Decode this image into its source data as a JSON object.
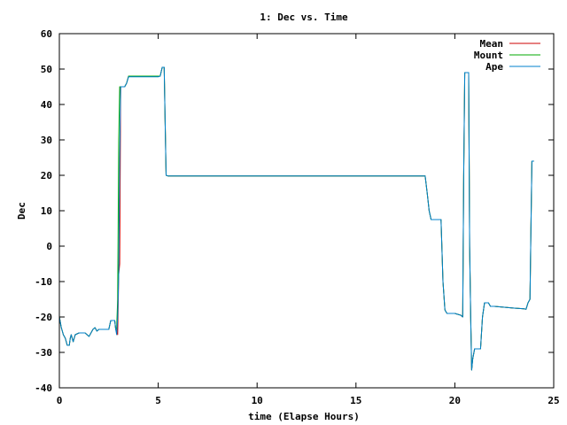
{
  "chart_data": {
    "type": "line",
    "title": "1: Dec vs. Time",
    "xlabel": "time (Elapse Hours)",
    "ylabel": "Dec",
    "xlim": [
      0,
      25
    ],
    "ylim": [
      -40,
      60
    ],
    "xticks": [
      0,
      5,
      10,
      15,
      20,
      25
    ],
    "yticks": [
      -40,
      -30,
      -20,
      -10,
      0,
      10,
      20,
      30,
      40,
      50,
      60
    ],
    "grid": false,
    "legend_position": "top-right",
    "series": [
      {
        "name": "Mean",
        "color": "#cc0000",
        "points": [
          [
            0,
            -20
          ],
          [
            0.1,
            -23
          ],
          [
            0.2,
            -25
          ],
          [
            0.3,
            -26
          ],
          [
            0.4,
            -28
          ],
          [
            0.5,
            -28
          ],
          [
            0.55,
            -26
          ],
          [
            0.6,
            -25
          ],
          [
            0.7,
            -27
          ],
          [
            0.8,
            -25
          ],
          [
            1.0,
            -24.5
          ],
          [
            1.3,
            -24.5
          ],
          [
            1.5,
            -25.5
          ],
          [
            1.6,
            -24.5
          ],
          [
            1.7,
            -23.5
          ],
          [
            1.8,
            -23
          ],
          [
            1.9,
            -24
          ],
          [
            2.0,
            -23.5
          ],
          [
            2.2,
            -23.5
          ],
          [
            2.5,
            -23.5
          ],
          [
            2.6,
            -21
          ],
          [
            2.8,
            -21
          ],
          [
            2.85,
            -23.5
          ],
          [
            2.9,
            -24
          ],
          [
            2.95,
            -25
          ],
          [
            3.0,
            -8
          ],
          [
            3.05,
            -5
          ],
          [
            3.1,
            45
          ],
          [
            3.2,
            45
          ],
          [
            3.3,
            45
          ],
          [
            3.4,
            46
          ],
          [
            3.5,
            48
          ],
          [
            4.0,
            48
          ],
          [
            5.0,
            48
          ],
          [
            5.1,
            48
          ],
          [
            5.2,
            50.5
          ],
          [
            5.3,
            50.5
          ],
          [
            5.35,
            35
          ],
          [
            5.4,
            20
          ],
          [
            5.5,
            19.8
          ],
          [
            10,
            19.8
          ],
          [
            15,
            19.8
          ],
          [
            18.5,
            19.8
          ],
          [
            18.6,
            15
          ],
          [
            18.7,
            10
          ],
          [
            18.8,
            7.5
          ],
          [
            19.3,
            7.5
          ],
          [
            19.4,
            -10
          ],
          [
            19.5,
            -18
          ],
          [
            19.6,
            -19
          ],
          [
            20.0,
            -19
          ],
          [
            20.3,
            -19.5
          ],
          [
            20.4,
            -20
          ],
          [
            20.45,
            20
          ],
          [
            20.5,
            49
          ],
          [
            20.7,
            49
          ],
          [
            20.75,
            0
          ],
          [
            20.8,
            -20
          ],
          [
            20.85,
            -35
          ],
          [
            20.9,
            -32
          ],
          [
            21.0,
            -29
          ],
          [
            21.3,
            -29
          ],
          [
            21.4,
            -20
          ],
          [
            21.5,
            -16
          ],
          [
            21.7,
            -16
          ],
          [
            21.8,
            -17
          ],
          [
            22.0,
            -17
          ],
          [
            23.0,
            -17.5
          ],
          [
            23.5,
            -17.7
          ],
          [
            23.6,
            -17.8
          ],
          [
            23.7,
            -16
          ],
          [
            23.8,
            -15
          ],
          [
            23.85,
            5
          ],
          [
            23.9,
            24
          ],
          [
            24.0,
            24
          ]
        ]
      },
      {
        "name": "Mount",
        "color": "#00aa00",
        "points": [
          [
            0,
            -20
          ],
          [
            0.1,
            -23
          ],
          [
            0.2,
            -25
          ],
          [
            0.3,
            -26
          ],
          [
            0.4,
            -28
          ],
          [
            0.5,
            -28
          ],
          [
            0.55,
            -26
          ],
          [
            0.6,
            -25
          ],
          [
            0.7,
            -27
          ],
          [
            0.8,
            -25
          ],
          [
            1.0,
            -24.5
          ],
          [
            1.3,
            -24.5
          ],
          [
            1.5,
            -25.5
          ],
          [
            1.6,
            -24.5
          ],
          [
            1.7,
            -23.5
          ],
          [
            1.8,
            -23
          ],
          [
            1.9,
            -24
          ],
          [
            2.0,
            -23.5
          ],
          [
            2.2,
            -23.5
          ],
          [
            2.5,
            -23.5
          ],
          [
            2.6,
            -21
          ],
          [
            2.8,
            -21
          ],
          [
            2.85,
            -23.5
          ],
          [
            2.9,
            -23
          ],
          [
            2.95,
            -15
          ],
          [
            3.0,
            30
          ],
          [
            3.05,
            45
          ],
          [
            3.1,
            45
          ],
          [
            3.2,
            45
          ],
          [
            3.3,
            45
          ],
          [
            3.4,
            46
          ],
          [
            3.5,
            48
          ],
          [
            4.0,
            48
          ],
          [
            5.0,
            48
          ],
          [
            5.1,
            48
          ],
          [
            5.2,
            50.5
          ],
          [
            5.3,
            50.5
          ],
          [
            5.35,
            35
          ],
          [
            5.4,
            20
          ],
          [
            5.5,
            19.8
          ],
          [
            10,
            19.8
          ],
          [
            15,
            19.8
          ],
          [
            18.5,
            19.8
          ],
          [
            18.6,
            15
          ],
          [
            18.7,
            10
          ],
          [
            18.8,
            7.5
          ],
          [
            19.3,
            7.5
          ],
          [
            19.4,
            -10
          ],
          [
            19.5,
            -18
          ],
          [
            19.6,
            -19
          ],
          [
            20.0,
            -19
          ],
          [
            20.3,
            -19.5
          ],
          [
            20.4,
            -20
          ],
          [
            20.45,
            20
          ],
          [
            20.5,
            49
          ],
          [
            20.7,
            49
          ],
          [
            20.75,
            0
          ],
          [
            20.8,
            -20
          ],
          [
            20.85,
            -35
          ],
          [
            20.9,
            -32
          ],
          [
            21.0,
            -29
          ],
          [
            21.3,
            -29
          ],
          [
            21.4,
            -20
          ],
          [
            21.5,
            -16
          ],
          [
            21.7,
            -16
          ],
          [
            21.8,
            -17
          ],
          [
            22.0,
            -17
          ],
          [
            23.0,
            -17.5
          ],
          [
            23.5,
            -17.7
          ],
          [
            23.6,
            -17.8
          ],
          [
            23.7,
            -16
          ],
          [
            23.8,
            -15
          ],
          [
            23.85,
            5
          ],
          [
            23.9,
            24
          ],
          [
            24.0,
            24
          ]
        ]
      },
      {
        "name": "Ape",
        "color": "#0080cc",
        "points": [
          [
            0,
            -20
          ],
          [
            0.1,
            -23
          ],
          [
            0.2,
            -25
          ],
          [
            0.3,
            -26
          ],
          [
            0.4,
            -28
          ],
          [
            0.5,
            -28
          ],
          [
            0.55,
            -26
          ],
          [
            0.6,
            -25
          ],
          [
            0.7,
            -27
          ],
          [
            0.8,
            -25
          ],
          [
            1.0,
            -24.5
          ],
          [
            1.3,
            -24.5
          ],
          [
            1.5,
            -25.5
          ],
          [
            1.6,
            -24.5
          ],
          [
            1.7,
            -23.5
          ],
          [
            1.8,
            -23
          ],
          [
            1.9,
            -24
          ],
          [
            2.0,
            -23.5
          ],
          [
            2.2,
            -23.5
          ],
          [
            2.5,
            -23.5
          ],
          [
            2.6,
            -21
          ],
          [
            2.8,
            -21
          ],
          [
            2.85,
            -23.5
          ],
          [
            2.9,
            -25
          ],
          [
            2.95,
            -20
          ],
          [
            3.0,
            -8
          ],
          [
            3.05,
            25
          ],
          [
            3.1,
            45
          ],
          [
            3.2,
            45
          ],
          [
            3.3,
            45
          ],
          [
            3.4,
            46
          ],
          [
            3.5,
            47.8
          ],
          [
            4.0,
            47.8
          ],
          [
            5.0,
            47.8
          ],
          [
            5.1,
            48
          ],
          [
            5.2,
            50.5
          ],
          [
            5.3,
            50.5
          ],
          [
            5.35,
            35
          ],
          [
            5.4,
            20
          ],
          [
            5.5,
            19.8
          ],
          [
            10,
            19.8
          ],
          [
            15,
            19.8
          ],
          [
            18.5,
            19.8
          ],
          [
            18.6,
            15
          ],
          [
            18.7,
            10
          ],
          [
            18.8,
            7.5
          ],
          [
            19.3,
            7.5
          ],
          [
            19.4,
            -10
          ],
          [
            19.5,
            -18
          ],
          [
            19.6,
            -19
          ],
          [
            20.0,
            -19
          ],
          [
            20.3,
            -19.5
          ],
          [
            20.4,
            -20
          ],
          [
            20.45,
            20
          ],
          [
            20.5,
            49
          ],
          [
            20.7,
            49
          ],
          [
            20.75,
            0
          ],
          [
            20.8,
            -20
          ],
          [
            20.85,
            -35
          ],
          [
            20.9,
            -32
          ],
          [
            21.0,
            -29
          ],
          [
            21.3,
            -29
          ],
          [
            21.4,
            -20
          ],
          [
            21.5,
            -16
          ],
          [
            21.7,
            -16
          ],
          [
            21.8,
            -17
          ],
          [
            22.0,
            -17
          ],
          [
            23.0,
            -17.5
          ],
          [
            23.5,
            -17.7
          ],
          [
            23.6,
            -17.8
          ],
          [
            23.7,
            -16
          ],
          [
            23.8,
            -15
          ],
          [
            23.85,
            5
          ],
          [
            23.9,
            24
          ],
          [
            24.0,
            24
          ]
        ]
      }
    ]
  }
}
